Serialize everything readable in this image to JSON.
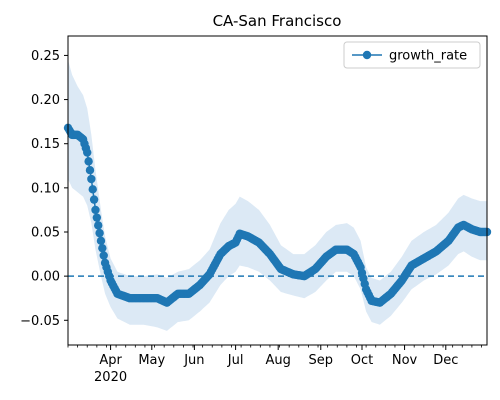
{
  "chart_data": {
    "type": "line",
    "title": "CA-San Francisco",
    "xlabel": "",
    "ylabel": "",
    "x_start": "2020-03-01",
    "x_end": "2020-12-31",
    "xlim": [
      "2020-03-01",
      "2020-12-31"
    ],
    "ylim": [
      -0.078,
      0.272
    ],
    "yticks": [
      -0.05,
      0.0,
      0.05,
      0.1,
      0.15,
      0.2,
      0.25
    ],
    "ytick_labels": [
      "−0.05",
      "0.00",
      "0.05",
      "0.10",
      "0.15",
      "0.20",
      "0.25"
    ],
    "xticks": [
      {
        "date": "2020-04-01",
        "label": "Apr",
        "sublabel": "2020"
      },
      {
        "date": "2020-05-01",
        "label": "May",
        "sublabel": ""
      },
      {
        "date": "2020-06-01",
        "label": "Jun",
        "sublabel": ""
      },
      {
        "date": "2020-07-01",
        "label": "Jul",
        "sublabel": ""
      },
      {
        "date": "2020-08-01",
        "label": "Aug",
        "sublabel": ""
      },
      {
        "date": "2020-09-01",
        "label": "Sep",
        "sublabel": ""
      },
      {
        "date": "2020-10-01",
        "label": "Oct",
        "sublabel": ""
      },
      {
        "date": "2020-11-01",
        "label": "Nov",
        "sublabel": ""
      },
      {
        "date": "2020-12-01",
        "label": "Dec",
        "sublabel": ""
      }
    ],
    "legend": {
      "position": "top-right",
      "entries": [
        "growth_rate"
      ]
    },
    "grid": false,
    "reference_line": {
      "y": 0.0,
      "style": "dashed",
      "color": "#1f77b4"
    },
    "colors": {
      "series": "#1f77b4",
      "band": "#dce9f5"
    },
    "series": [
      {
        "name": "growth_rate",
        "marker": "circle",
        "keypoints": [
          {
            "x": "2020-03-01",
            "y": 0.168,
            "lo": 0.11,
            "hi": 0.245
          },
          {
            "x": "2020-03-04",
            "y": 0.16,
            "lo": 0.1,
            "hi": 0.228
          },
          {
            "x": "2020-03-08",
            "y": 0.16,
            "lo": 0.095,
            "hi": 0.215
          },
          {
            "x": "2020-03-12",
            "y": 0.155,
            "lo": 0.09,
            "hi": 0.205
          },
          {
            "x": "2020-03-15",
            "y": 0.14,
            "lo": 0.08,
            "hi": 0.19
          },
          {
            "x": "2020-03-18",
            "y": 0.11,
            "lo": 0.06,
            "hi": 0.16
          },
          {
            "x": "2020-03-21",
            "y": 0.075,
            "lo": 0.03,
            "hi": 0.12
          },
          {
            "x": "2020-03-25",
            "y": 0.04,
            "lo": 0.0,
            "hi": 0.075
          },
          {
            "x": "2020-03-28",
            "y": 0.015,
            "lo": -0.02,
            "hi": 0.045
          },
          {
            "x": "2020-04-01",
            "y": -0.005,
            "lo": -0.035,
            "hi": 0.02
          },
          {
            "x": "2020-04-06",
            "y": -0.02,
            "lo": -0.048,
            "hi": 0.005
          },
          {
            "x": "2020-04-15",
            "y": -0.025,
            "lo": -0.055,
            "hi": 0.0
          },
          {
            "x": "2020-04-25",
            "y": -0.025,
            "lo": -0.055,
            "hi": 0.0
          },
          {
            "x": "2020-05-05",
            "y": -0.025,
            "lo": -0.058,
            "hi": 0.002
          },
          {
            "x": "2020-05-12",
            "y": -0.03,
            "lo": -0.062,
            "hi": -0.002
          },
          {
            "x": "2020-05-20",
            "y": -0.02,
            "lo": -0.052,
            "hi": 0.005
          },
          {
            "x": "2020-05-28",
            "y": -0.02,
            "lo": -0.05,
            "hi": 0.008
          },
          {
            "x": "2020-06-05",
            "y": -0.01,
            "lo": -0.04,
            "hi": 0.018
          },
          {
            "x": "2020-06-12",
            "y": 0.002,
            "lo": -0.03,
            "hi": 0.03
          },
          {
            "x": "2020-06-20",
            "y": 0.025,
            "lo": -0.01,
            "hi": 0.06
          },
          {
            "x": "2020-06-26",
            "y": 0.034,
            "lo": 0.0,
            "hi": 0.075
          },
          {
            "x": "2020-07-01",
            "y": 0.038,
            "lo": 0.005,
            "hi": 0.082
          },
          {
            "x": "2020-07-04",
            "y": 0.048,
            "lo": 0.012,
            "hi": 0.09
          },
          {
            "x": "2020-07-10",
            "y": 0.045,
            "lo": 0.01,
            "hi": 0.085
          },
          {
            "x": "2020-07-18",
            "y": 0.038,
            "lo": 0.005,
            "hi": 0.075
          },
          {
            "x": "2020-07-26",
            "y": 0.025,
            "lo": -0.005,
            "hi": 0.058
          },
          {
            "x": "2020-08-03",
            "y": 0.008,
            "lo": -0.018,
            "hi": 0.035
          },
          {
            "x": "2020-08-12",
            "y": 0.002,
            "lo": -0.022,
            "hi": 0.025
          },
          {
            "x": "2020-08-20",
            "y": 0.0,
            "lo": -0.025,
            "hi": 0.025
          },
          {
            "x": "2020-08-28",
            "y": 0.008,
            "lo": -0.018,
            "hi": 0.035
          },
          {
            "x": "2020-09-05",
            "y": 0.022,
            "lo": -0.005,
            "hi": 0.05
          },
          {
            "x": "2020-09-12",
            "y": 0.03,
            "lo": 0.005,
            "hi": 0.058
          },
          {
            "x": "2020-09-20",
            "y": 0.03,
            "lo": 0.005,
            "hi": 0.06
          },
          {
            "x": "2020-09-25",
            "y": 0.025,
            "lo": 0.0,
            "hi": 0.055
          },
          {
            "x": "2020-09-30",
            "y": 0.01,
            "lo": -0.015,
            "hi": 0.04
          },
          {
            "x": "2020-10-04",
            "y": -0.015,
            "lo": -0.04,
            "hi": 0.01
          },
          {
            "x": "2020-10-08",
            "y": -0.028,
            "lo": -0.052,
            "hi": -0.002
          },
          {
            "x": "2020-10-14",
            "y": -0.03,
            "lo": -0.055,
            "hi": -0.005
          },
          {
            "x": "2020-10-22",
            "y": -0.02,
            "lo": -0.045,
            "hi": 0.005
          },
          {
            "x": "2020-10-30",
            "y": -0.005,
            "lo": -0.03,
            "hi": 0.022
          },
          {
            "x": "2020-11-06",
            "y": 0.012,
            "lo": -0.015,
            "hi": 0.04
          },
          {
            "x": "2020-11-15",
            "y": 0.02,
            "lo": -0.005,
            "hi": 0.05
          },
          {
            "x": "2020-11-24",
            "y": 0.028,
            "lo": 0.002,
            "hi": 0.058
          },
          {
            "x": "2020-12-03",
            "y": 0.04,
            "lo": 0.012,
            "hi": 0.072
          },
          {
            "x": "2020-12-10",
            "y": 0.055,
            "lo": 0.025,
            "hi": 0.088
          },
          {
            "x": "2020-12-14",
            "y": 0.058,
            "lo": 0.028,
            "hi": 0.092
          },
          {
            "x": "2020-12-20",
            "y": 0.053,
            "lo": 0.022,
            "hi": 0.088
          },
          {
            "x": "2020-12-26",
            "y": 0.05,
            "lo": 0.018,
            "hi": 0.085
          },
          {
            "x": "2020-12-31",
            "y": 0.05,
            "lo": 0.018,
            "hi": 0.085
          }
        ]
      }
    ]
  }
}
